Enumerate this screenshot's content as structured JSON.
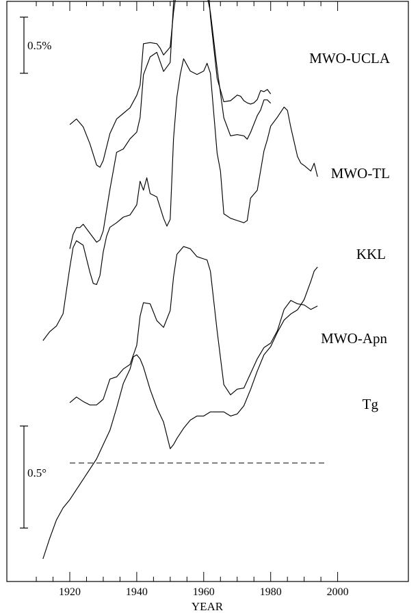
{
  "chart_data": {
    "type": "line",
    "xlabel": "YEAR",
    "xlim": [
      1906,
      2000
    ],
    "x_ticks": [
      1920,
      1940,
      1960,
      1980,
      2000
    ],
    "x_tick_labels": [
      "1920",
      "1940",
      "1960",
      "1980",
      "2000"
    ],
    "scale_bars": [
      {
        "label": "0.5%",
        "applies_to": "cosmic ray series"
      },
      {
        "label": "0.5°",
        "applies_to": "Tg"
      }
    ],
    "reference_line": {
      "style": "dashed",
      "series": "Tg",
      "x_range": [
        1920,
        1990
      ]
    },
    "series": [
      {
        "name": "MWO-UCLA",
        "x": [
          1920,
          1922,
          1924,
          1926,
          1928,
          1929,
          1930,
          1932,
          1934,
          1936,
          1938,
          1940,
          1941,
          1942,
          1944,
          1946,
          1947,
          1948,
          1950,
          1951,
          1952,
          1954,
          1955,
          1956,
          1958,
          1960,
          1961,
          1962,
          1964,
          1966,
          1968,
          1970,
          1972,
          1973,
          1974,
          1976,
          1977,
          1978,
          1979,
          1980
        ],
        "y": [
          0.58,
          0.63,
          0.56,
          0.41,
          0.22,
          0.2,
          0.26,
          0.5,
          0.63,
          0.68,
          0.73,
          0.84,
          0.93,
          1.3,
          1.31,
          1.3,
          1.26,
          1.2,
          1.27,
          1.58,
          1.79,
          1.93,
          1.95,
          1.93,
          1.82,
          1.76,
          1.73,
          1.58,
          1.08,
          0.64,
          0.48,
          0.49,
          0.48,
          0.45,
          0.51,
          0.66,
          0.71,
          0.8,
          0.8,
          0.77
        ]
      },
      {
        "name": "MWO-TL",
        "x": [
          1920,
          1921,
          1922,
          1923,
          1924,
          1926,
          1928,
          1929,
          1930,
          1932,
          1934,
          1936,
          1938,
          1940,
          1941,
          1942,
          1944,
          1946,
          1948,
          1950,
          1951,
          1952,
          1954,
          1955,
          1956,
          1957,
          1958,
          1960,
          1961,
          1962,
          1964,
          1966,
          1968,
          1970,
          1971,
          1972,
          1973,
          1974,
          1975,
          1976,
          1977,
          1978,
          1979,
          1980
        ],
        "y": [
          0.54,
          0.67,
          0.73,
          0.73,
          0.76,
          0.68,
          0.6,
          0.62,
          0.7,
          1.07,
          1.4,
          1.43,
          1.52,
          1.58,
          1.71,
          2.09,
          2.25,
          2.29,
          2.12,
          2.2,
          2.73,
          3.07,
          3.25,
          3.26,
          3.18,
          3.14,
          3.14,
          3.2,
          3.03,
          2.61,
          2.06,
          1.85,
          1.86,
          1.91,
          1.9,
          1.86,
          1.84,
          1.83,
          1.84,
          1.87,
          1.95,
          1.94,
          1.96,
          1.92
        ]
      },
      {
        "name": "KKL",
        "x": [
          1912,
          1914,
          1916,
          1918,
          1920,
          1921,
          1922,
          1924,
          1926,
          1927,
          1928,
          1929,
          1930,
          1931,
          1932,
          1934,
          1936,
          1938,
          1940,
          1941,
          1942,
          1943,
          1944,
          1946,
          1948,
          1949,
          1950,
          1951,
          1952,
          1953,
          1954,
          1956,
          1958,
          1960,
          1961,
          1962,
          1964,
          1965,
          1966,
          1968,
          1970,
          1972,
          1973,
          1974,
          1976,
          1978,
          1979,
          1980,
          1982,
          1984,
          1985,
          1986,
          1988,
          1989,
          1990,
          1992,
          1993,
          1994
        ],
        "y": [
          0.54,
          0.62,
          0.67,
          0.78,
          1.19,
          1.37,
          1.43,
          1.39,
          1.15,
          1.05,
          1.04,
          1.12,
          1.33,
          1.47,
          1.55,
          1.59,
          1.64,
          1.66,
          1.75,
          1.96,
          1.88,
          1.99,
          1.85,
          1.82,
          1.63,
          1.56,
          1.62,
          2.34,
          2.71,
          2.91,
          3.05,
          2.94,
          2.91,
          2.94,
          3.01,
          2.92,
          2.21,
          2.05,
          1.67,
          1.63,
          1.61,
          1.59,
          1.61,
          1.81,
          1.88,
          2.23,
          2.33,
          2.45,
          2.53,
          2.62,
          2.59,
          2.44,
          2.18,
          2.12,
          2.1,
          2.05,
          2.12,
          2.0
        ]
      },
      {
        "name": "MWO-Apn",
        "x": [
          1920,
          1922,
          1924,
          1926,
          1928,
          1930,
          1932,
          1934,
          1936,
          1938,
          1940,
          1941,
          1942,
          1944,
          1946,
          1948,
          1950,
          1951,
          1952,
          1954,
          1956,
          1958,
          1960,
          1961,
          1962,
          1964,
          1966,
          1968,
          1970,
          1972,
          1974,
          1976,
          1978,
          1980,
          1982,
          1984,
          1986,
          1988,
          1990,
          1992,
          1994
        ],
        "y": [
          0.58,
          0.63,
          0.59,
          0.56,
          0.56,
          0.61,
          0.79,
          0.81,
          0.88,
          0.92,
          1.09,
          1.35,
          1.47,
          1.46,
          1.31,
          1.25,
          1.4,
          1.7,
          1.9,
          1.97,
          1.95,
          1.88,
          1.86,
          1.85,
          1.75,
          1.22,
          0.74,
          0.65,
          0.7,
          0.71,
          0.84,
          0.97,
          1.07,
          1.11,
          1.22,
          1.41,
          1.49,
          1.46,
          1.45,
          1.41,
          1.44
        ]
      },
      {
        "name": "Tg",
        "x": [
          1912,
          1914,
          1916,
          1918,
          1920,
          1922,
          1924,
          1926,
          1928,
          1930,
          1932,
          1934,
          1936,
          1938,
          1939,
          1940,
          1941,
          1942,
          1944,
          1946,
          1948,
          1950,
          1951,
          1952,
          1954,
          1956,
          1958,
          1960,
          1962,
          1964,
          1966,
          1968,
          1970,
          1972,
          1974,
          1976,
          1978,
          1980,
          1982,
          1984,
          1986,
          1988,
          1990,
          1992,
          1993,
          1994
        ],
        "y": [
          0.0,
          0.1,
          0.19,
          0.25,
          0.29,
          0.34,
          0.39,
          0.44,
          0.49,
          0.56,
          0.63,
          0.74,
          0.86,
          0.93,
          0.99,
          1.0,
          0.98,
          0.94,
          0.83,
          0.74,
          0.67,
          0.54,
          0.56,
          0.59,
          0.64,
          0.68,
          0.7,
          0.7,
          0.72,
          0.72,
          0.72,
          0.7,
          0.71,
          0.75,
          0.83,
          0.92,
          1.0,
          1.04,
          1.11,
          1.17,
          1.2,
          1.22,
          1.27,
          1.36,
          1.41,
          1.43
        ]
      }
    ]
  }
}
